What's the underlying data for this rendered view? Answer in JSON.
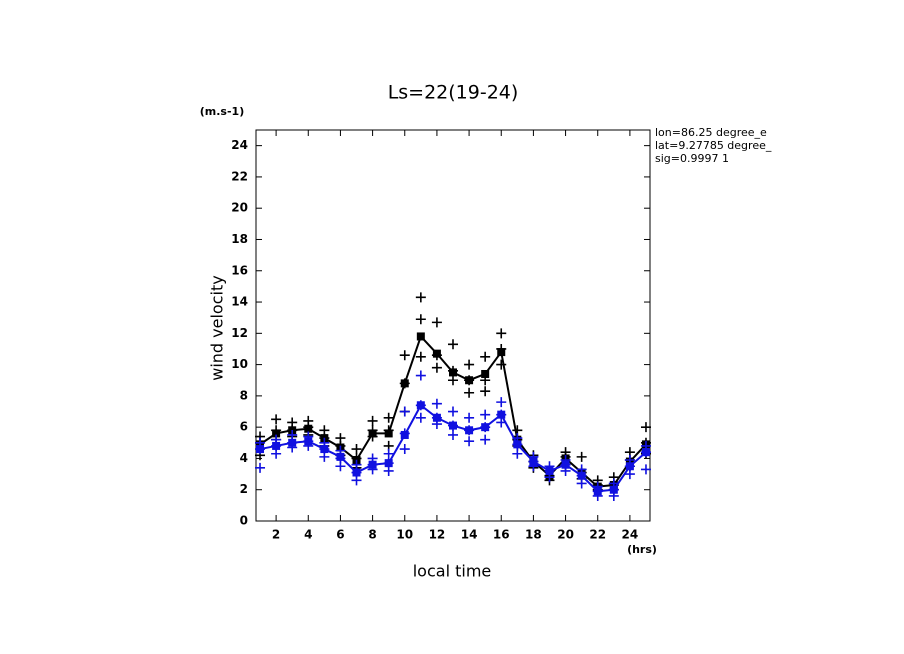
{
  "chart_data": {
    "type": "line",
    "title": "Ls=22(19-24)",
    "y_units": "(m.s-1)",
    "x_units": "(hrs)",
    "ylabel": "wind velocity",
    "xlabel": "local time",
    "annotations": [
      "lon=86.25 degree_e",
      "lat=9.27785 degree_",
      "sig=0.9997 1"
    ],
    "x": [
      1,
      2,
      3,
      4,
      5,
      6,
      7,
      8,
      9,
      10,
      11,
      12,
      13,
      14,
      15,
      16,
      17,
      18,
      19,
      20,
      21,
      22,
      23,
      24,
      25
    ],
    "xlim": [
      0.75,
      25.25
    ],
    "xticks": [
      2,
      4,
      6,
      8,
      10,
      12,
      14,
      16,
      18,
      20,
      22,
      24
    ],
    "ylim": [
      0,
      25
    ],
    "yticks": [
      0,
      2,
      4,
      6,
      8,
      10,
      12,
      14,
      16,
      18,
      20,
      22,
      24
    ],
    "series": [
      {
        "color": "#000000",
        "values": [
          4.9,
          5.6,
          5.8,
          5.9,
          5.3,
          4.7,
          3.9,
          5.6,
          5.6,
          8.8,
          11.8,
          10.7,
          9.5,
          9.0,
          9.4,
          10.8,
          5.2,
          3.8,
          2.9,
          4.0,
          3.1,
          2.2,
          2.3,
          3.8,
          4.9
        ],
        "samples": [
          [
            4.2,
            5.0,
            5.4
          ],
          [
            5.2,
            5.8,
            6.5
          ],
          [
            5.4,
            5.8,
            6.3
          ],
          [
            5.5,
            6.0,
            6.4
          ],
          [
            4.8,
            5.3,
            5.8
          ],
          [
            4.2,
            4.8,
            5.3
          ],
          [
            3.4,
            4.0,
            4.6
          ],
          [
            5.4,
            5.8,
            6.4
          ],
          [
            4.8,
            5.8,
            6.6
          ],
          [
            7.0,
            8.8,
            10.6
          ],
          [
            10.5,
            12.9,
            14.3
          ],
          [
            9.8,
            10.6,
            12.7
          ],
          [
            9.0,
            9.6,
            11.3
          ],
          [
            8.2,
            9.0,
            10.0
          ],
          [
            8.3,
            9.0,
            10.5
          ],
          [
            10.0,
            11.0,
            12.0
          ],
          [
            4.8,
            5.2,
            5.8
          ],
          [
            3.4,
            3.8,
            4.2
          ],
          [
            2.6,
            2.9,
            3.2
          ],
          [
            3.6,
            4.1,
            4.4
          ],
          [
            2.7,
            3.1,
            4.1
          ],
          [
            2.0,
            2.3,
            2.6
          ],
          [
            2.0,
            2.3,
            2.8
          ],
          [
            3.5,
            3.9,
            4.4
          ],
          [
            4.3,
            5.0,
            6.0
          ]
        ]
      },
      {
        "color": "#1010e0",
        "values": [
          4.6,
          4.8,
          5.0,
          5.1,
          4.6,
          4.1,
          3.1,
          3.6,
          3.7,
          5.5,
          7.4,
          6.6,
          6.1,
          5.8,
          6.0,
          6.8,
          4.9,
          3.8,
          3.2,
          3.6,
          2.9,
          1.9,
          2.0,
          3.5,
          4.4
        ],
        "samples": [
          [
            3.4,
            4.6,
            5.0
          ],
          [
            4.3,
            4.8,
            5.2
          ],
          [
            4.7,
            5.0,
            5.5
          ],
          [
            4.8,
            5.1,
            5.4
          ],
          [
            4.1,
            4.6,
            5.0
          ],
          [
            3.5,
            4.0,
            4.5
          ],
          [
            2.6,
            3.1,
            3.6
          ],
          [
            3.3,
            3.6,
            4.0
          ],
          [
            3.2,
            3.7,
            4.3
          ],
          [
            4.6,
            5.6,
            7.0
          ],
          [
            6.6,
            7.4,
            9.3
          ],
          [
            6.2,
            6.6,
            7.5
          ],
          [
            5.5,
            6.1,
            7.0
          ],
          [
            5.1,
            5.8,
            6.6
          ],
          [
            5.2,
            6.0,
            6.8
          ],
          [
            6.3,
            6.8,
            7.6
          ],
          [
            4.3,
            4.9,
            5.3
          ],
          [
            3.5,
            3.8,
            4.1
          ],
          [
            2.8,
            3.2,
            3.5
          ],
          [
            3.2,
            3.6,
            3.9
          ],
          [
            2.4,
            2.9,
            3.3
          ],
          [
            1.6,
            1.9,
            2.2
          ],
          [
            1.6,
            2.0,
            2.4
          ],
          [
            3.0,
            3.5,
            3.9
          ],
          [
            3.3,
            4.4,
            4.8
          ]
        ]
      }
    ]
  }
}
